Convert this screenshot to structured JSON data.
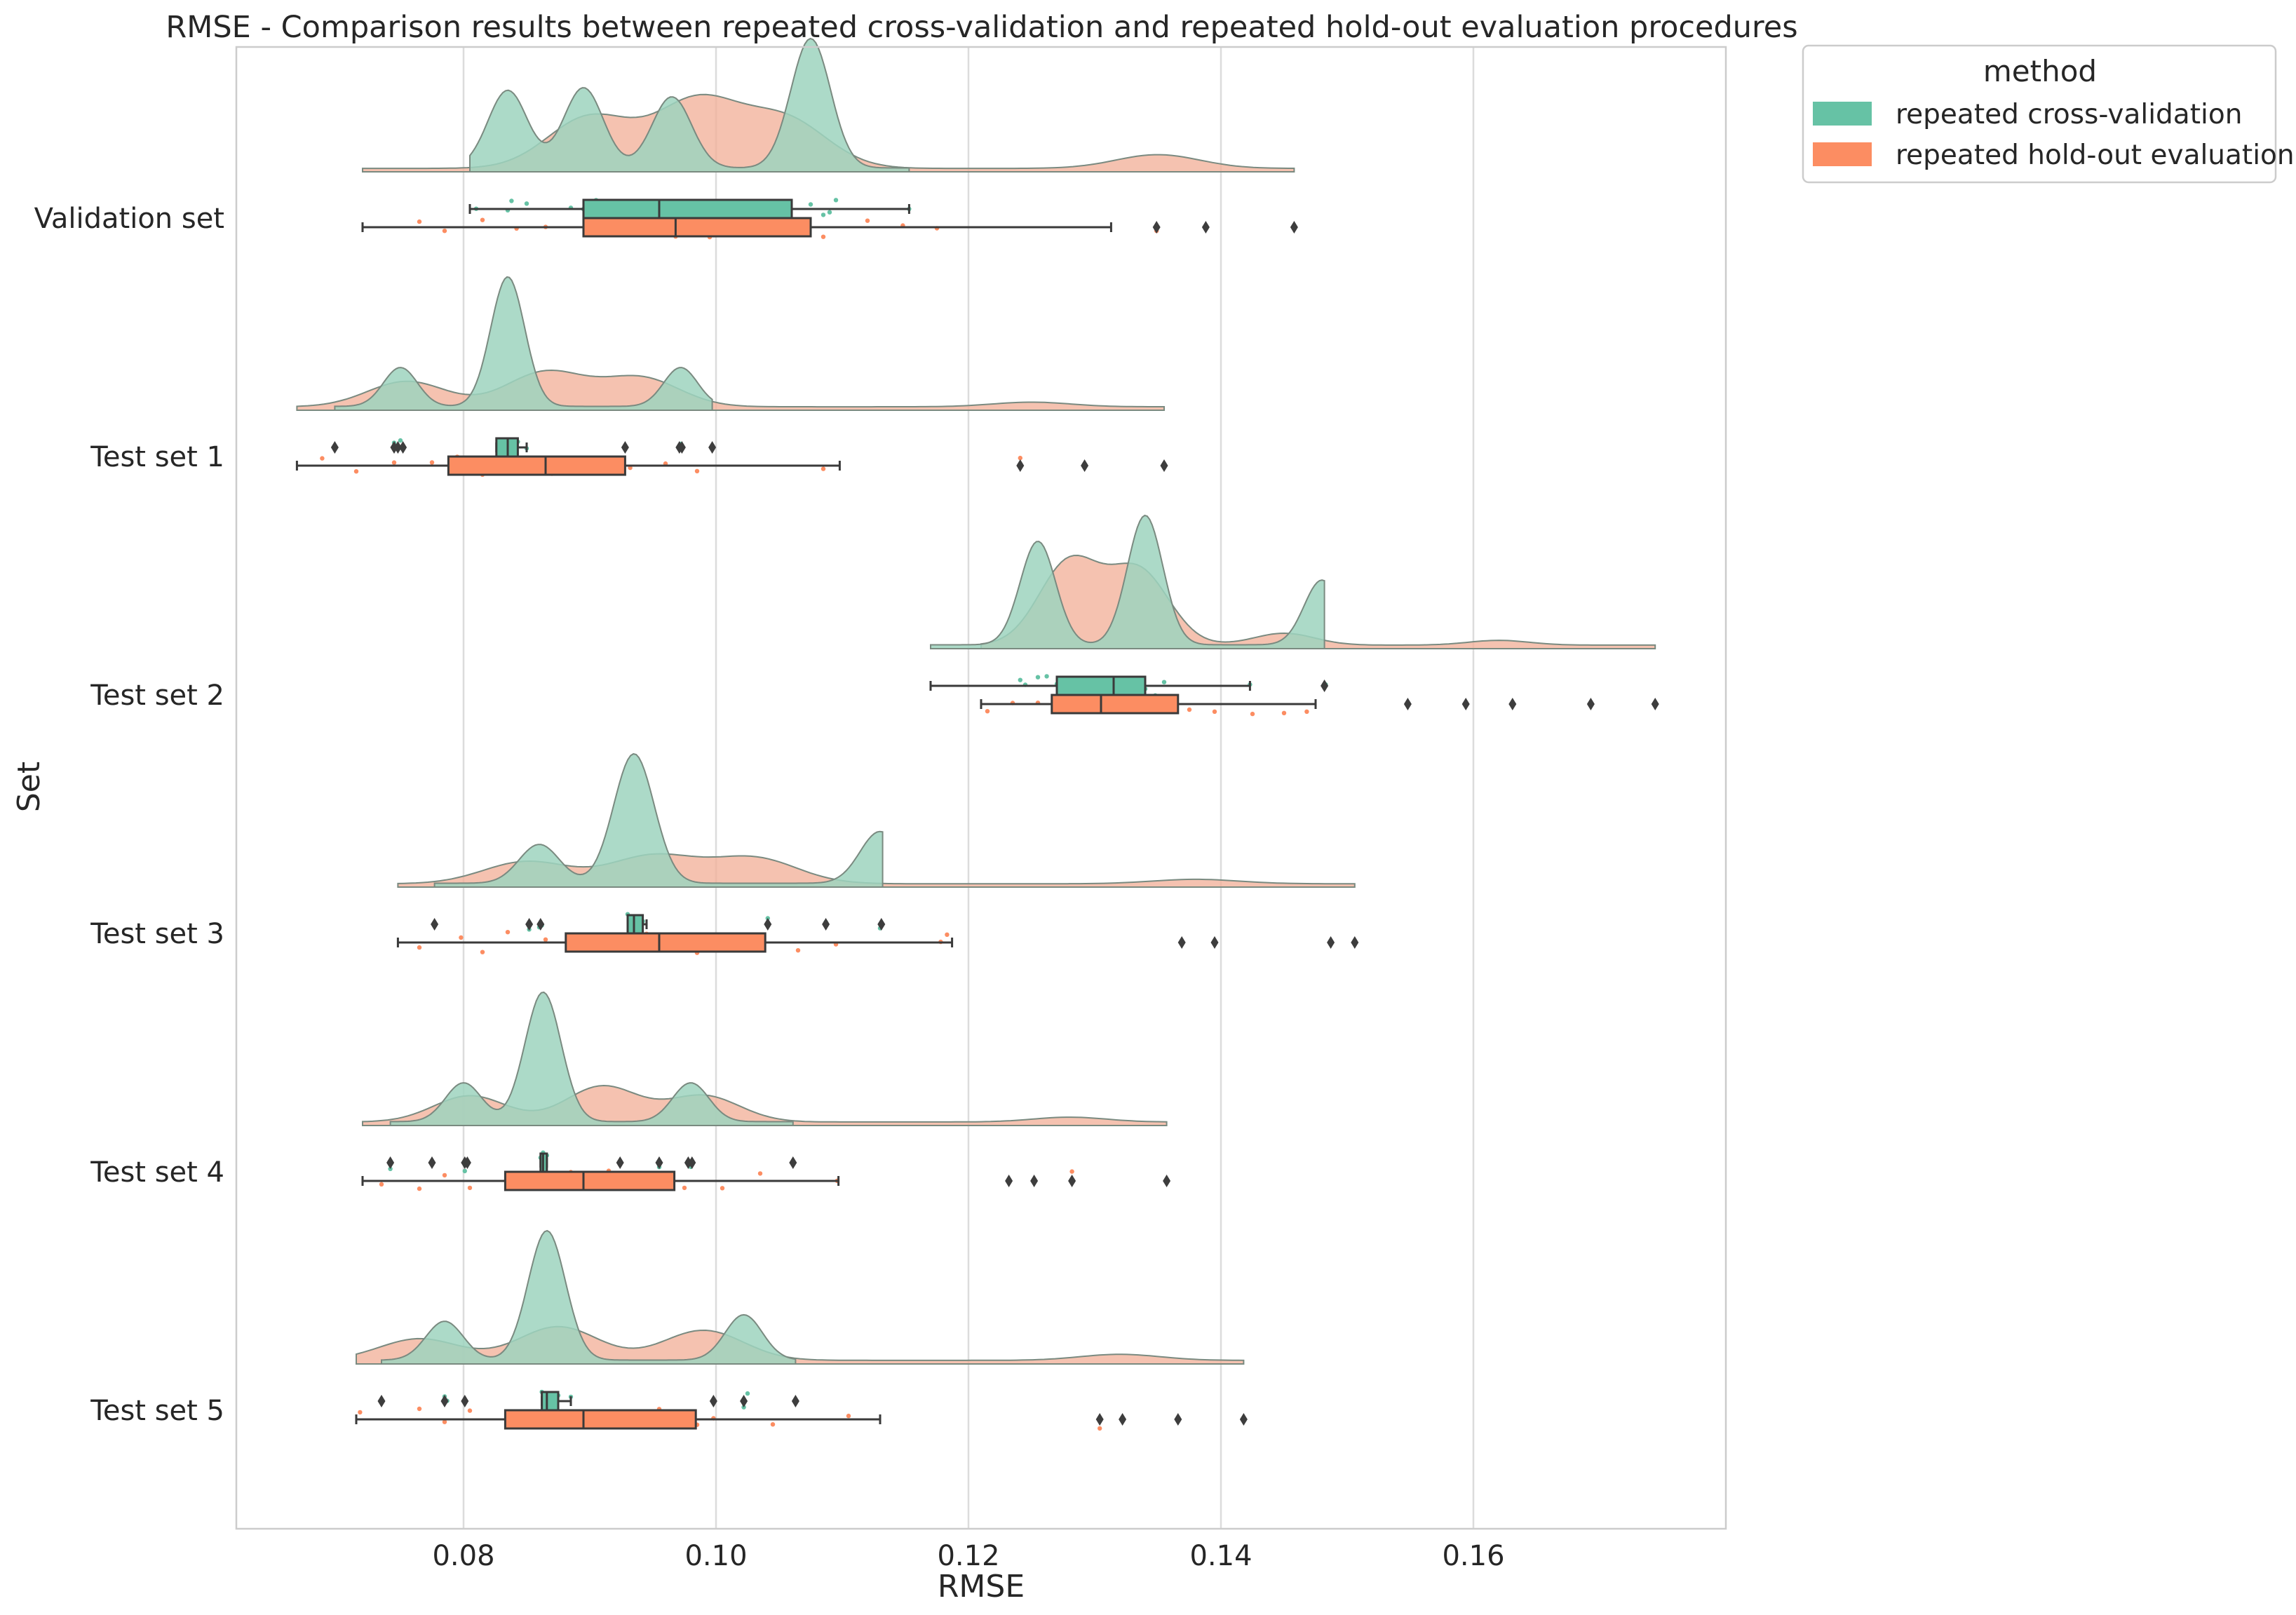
{
  "chart_data": {
    "type": "raincloud",
    "title": "RMSE - Comparison results between repeated cross-validation and repeated hold-out evaluation procedures",
    "xlabel": "RMSE",
    "ylabel": "Set",
    "xlim": [
      0.062,
      0.18
    ],
    "xticks": [
      0.08,
      0.1,
      0.12,
      0.14,
      0.16
    ],
    "xtick_labels": [
      "0.08",
      "0.10",
      "0.12",
      "0.14",
      "0.16"
    ],
    "grid": "vertical",
    "categories": [
      "Validation set",
      "Test set 1",
      "Test set 2",
      "Test set 3",
      "Test set 4",
      "Test set 5"
    ],
    "legend": {
      "title": "method",
      "position": "outside-top-right",
      "entries": [
        "repeated cross-validation",
        "repeated hold-out evaluation"
      ]
    },
    "colors": {
      "cv": "#66c2a5",
      "ho": "#fc8d62",
      "cv_cloud": "#9ed3be",
      "ho_cloud": "#f2b19a",
      "box_edge": "#3a3a3a",
      "grid": "#dcdcdc",
      "frame": "#cccccc"
    },
    "series": [
      {
        "name": "repeated cross-validation",
        "key": "cv",
        "groups": [
          {
            "set": "Validation set",
            "q1": 0.0895,
            "median": 0.0955,
            "q3": 0.106,
            "whisker_low": 0.0805,
            "whisker_high": 0.1153,
            "outliers": [],
            "density_range": [
              0.0805,
              0.1153
            ],
            "density_peaks": [
              [
                0.0835,
                0.6
              ],
              [
                0.0895,
                0.62
              ],
              [
                0.0965,
                0.55
              ],
              [
                0.1075,
                1.0
              ]
            ],
            "points": [
              0.081,
              0.0835,
              0.0838,
              0.085,
              0.0885,
              0.0895,
              0.0905,
              0.0965,
              0.0968,
              0.1005,
              0.1075,
              0.1085,
              0.109,
              0.1095,
              0.1153
            ]
          },
          {
            "set": "Test set 1",
            "q1": 0.0826,
            "median": 0.0835,
            "q3": 0.0843,
            "whisker_low": 0.0826,
            "whisker_high": 0.085,
            "outliers": [
              0.0698,
              0.0745,
              0.0748,
              0.0752,
              0.0928,
              0.0971,
              0.0973,
              0.0997
            ],
            "density_range": [
              0.0698,
              0.0997
            ],
            "density_peaks": [
              [
                0.075,
                0.3
              ],
              [
                0.0835,
                1.0
              ],
              [
                0.0972,
                0.3
              ]
            ],
            "points": [
              0.0745,
              0.075,
              0.0826,
              0.0835,
              0.0843,
              0.085,
              0.0972
            ]
          },
          {
            "set": "Test set 2",
            "q1": 0.127,
            "median": 0.1315,
            "q3": 0.134,
            "whisker_low": 0.117,
            "whisker_high": 0.1423,
            "outliers": [
              0.1482
            ],
            "density_range": [
              0.117,
              0.1482
            ],
            "density_peaks": [
              [
                0.1255,
                0.8
              ],
              [
                0.134,
                1.0
              ],
              [
                0.148,
                0.5
              ]
            ],
            "points": [
              0.1241,
              0.1245,
              0.1255,
              0.1262,
              0.127,
              0.1315,
              0.134,
              0.1348,
              0.1355,
              0.1423,
              0.1482,
              0.1483
            ]
          },
          {
            "set": "Test set 3",
            "q1": 0.093,
            "median": 0.0935,
            "q3": 0.0942,
            "whisker_low": 0.093,
            "whisker_high": 0.0945,
            "outliers": [
              0.0777,
              0.0852,
              0.0861,
              0.1041,
              0.1087,
              0.1131
            ],
            "density_range": [
              0.0777,
              0.1132
            ],
            "density_peaks": [
              [
                0.086,
                0.3
              ],
              [
                0.0935,
                1.0
              ],
              [
                0.113,
                0.4
              ]
            ],
            "points": [
              0.0852,
              0.086,
              0.0862,
              0.093,
              0.0935,
              0.0942,
              0.1041,
              0.1087,
              0.113
            ]
          },
          {
            "set": "Test set 4",
            "q1": 0.0861,
            "median": 0.0863,
            "q3": 0.0866,
            "whisker_low": 0.0861,
            "whisker_high": 0.0866,
            "outliers": [
              0.0742,
              0.0775,
              0.0801,
              0.0803,
              0.0924,
              0.0955,
              0.0978,
              0.0981,
              0.1061
            ],
            "density_range": [
              0.0742,
              0.1061
            ],
            "density_peaks": [
              [
                0.08,
                0.3
              ],
              [
                0.0863,
                1.0
              ],
              [
                0.098,
                0.3
              ]
            ],
            "points": [
              0.0742,
              0.0801,
              0.0861,
              0.0863,
              0.0866,
              0.0955,
              0.098
            ]
          },
          {
            "set": "Test set 5",
            "q1": 0.0862,
            "median": 0.0866,
            "q3": 0.0875,
            "whisker_low": 0.0862,
            "whisker_high": 0.0885,
            "outliers": [
              0.0735,
              0.0785,
              0.0801,
              0.0998,
              0.1022,
              0.1063
            ],
            "density_range": [
              0.0735,
              0.1063
            ],
            "density_peaks": [
              [
                0.0785,
                0.3
              ],
              [
                0.0866,
                1.0
              ],
              [
                0.1022,
                0.35
              ]
            ],
            "points": [
              0.0785,
              0.0787,
              0.0862,
              0.0866,
              0.0875,
              0.0885,
              0.1022,
              0.1025
            ]
          }
        ]
      },
      {
        "name": "repeated hold-out evaluation",
        "key": "ho",
        "groups": [
          {
            "set": "Validation set",
            "q1": 0.0895,
            "median": 0.0968,
            "q3": 0.1075,
            "whisker_low": 0.072,
            "whisker_high": 0.1313,
            "outliers": [
              0.1349,
              0.1388,
              0.1458
            ],
            "density_range": [
              0.072,
              0.1458
            ],
            "density_peaks": [
              [
                0.09,
                0.45
              ],
              [
                0.0985,
                0.58
              ],
              [
                0.1055,
                0.42
              ],
              [
                0.135,
                0.12
              ]
            ],
            "points": [
              0.0765,
              0.0785,
              0.0815,
              0.0842,
              0.0865,
              0.0905,
              0.094,
              0.0968,
              0.0995,
              0.1015,
              0.1045,
              0.1085,
              0.112,
              0.1148,
              0.1175,
              0.1349
            ]
          },
          {
            "set": "Test set 1",
            "q1": 0.0788,
            "median": 0.0865,
            "q3": 0.0928,
            "whisker_low": 0.0668,
            "whisker_high": 0.1098,
            "outliers": [
              0.1241,
              0.1292,
              0.1355
            ],
            "density_range": [
              0.0668,
              0.1355
            ],
            "density_peaks": [
              [
                0.0755,
                0.22
              ],
              [
                0.0865,
                0.3
              ],
              [
                0.094,
                0.25
              ],
              [
                0.125,
                0.04
              ]
            ],
            "points": [
              0.0688,
              0.0715,
              0.0745,
              0.0775,
              0.0795,
              0.0815,
              0.0845,
              0.087,
              0.0895,
              0.0915,
              0.0932,
              0.096,
              0.0985,
              0.1085,
              0.1241
            ]
          },
          {
            "set": "Test set 2",
            "q1": 0.1266,
            "median": 0.1305,
            "q3": 0.1366,
            "whisker_low": 0.121,
            "whisker_high": 0.1475,
            "outliers": [
              0.1548,
              0.1594,
              0.1631,
              0.1693,
              0.1744
            ],
            "density_range": [
              0.121,
              0.1744
            ],
            "density_peaks": [
              [
                0.128,
                0.7
              ],
              [
                0.1335,
                0.62
              ],
              [
                0.145,
                0.1
              ],
              [
                0.162,
                0.04
              ]
            ],
            "points": [
              0.1215,
              0.1235,
              0.1255,
              0.1275,
              0.1295,
              0.1315,
              0.1335,
              0.1355,
              0.1375,
              0.1395,
              0.1425,
              0.145,
              0.1468
            ]
          },
          {
            "set": "Test set 3",
            "q1": 0.0881,
            "median": 0.0955,
            "q3": 0.1039,
            "whisker_low": 0.0748,
            "whisker_high": 0.1187,
            "outliers": [
              0.1369,
              0.1395,
              0.1487,
              0.1506
            ],
            "density_range": [
              0.0748,
              0.1506
            ],
            "density_peaks": [
              [
                0.085,
                0.2
              ],
              [
                0.095,
                0.25
              ],
              [
                0.103,
                0.23
              ],
              [
                0.138,
                0.04
              ]
            ],
            "points": [
              0.0765,
              0.0798,
              0.0815,
              0.0835,
              0.0865,
              0.0895,
              0.0915,
              0.0945,
              0.0985,
              0.1025,
              0.1065,
              0.1095,
              0.1178,
              0.1183
            ]
          },
          {
            "set": "Test set 4",
            "q1": 0.0833,
            "median": 0.0895,
            "q3": 0.0967,
            "whisker_low": 0.072,
            "whisker_high": 0.1097,
            "outliers": [
              0.1232,
              0.1252,
              0.1282,
              0.1357
            ],
            "density_range": [
              0.072,
              0.1357
            ],
            "density_peaks": [
              [
                0.0805,
                0.22
              ],
              [
                0.091,
                0.3
              ],
              [
                0.099,
                0.22
              ],
              [
                0.128,
                0.04
              ]
            ],
            "points": [
              0.0735,
              0.0765,
              0.0785,
              0.0805,
              0.0835,
              0.0865,
              0.0885,
              0.0915,
              0.0945,
              0.0975,
              0.1005,
              0.1035,
              0.1096,
              0.1282
            ]
          },
          {
            "set": "Test set 5",
            "q1": 0.0833,
            "median": 0.0895,
            "q3": 0.0984,
            "whisker_low": 0.0715,
            "whisker_high": 0.113,
            "outliers": [
              0.1304,
              0.1322,
              0.1366,
              0.1418
            ],
            "density_range": [
              0.0715,
              0.1418
            ],
            "density_peaks": [
              [
                0.0765,
                0.18
              ],
              [
                0.0875,
                0.28
              ],
              [
                0.099,
                0.25
              ],
              [
                0.132,
                0.05
              ]
            ],
            "points": [
              0.0718,
              0.0765,
              0.0785,
              0.0805,
              0.0835,
              0.0865,
              0.0895,
              0.0925,
              0.0955,
              0.0985,
              0.0998,
              0.1045,
              0.1105,
              0.1304
            ]
          }
        ]
      }
    ]
  }
}
